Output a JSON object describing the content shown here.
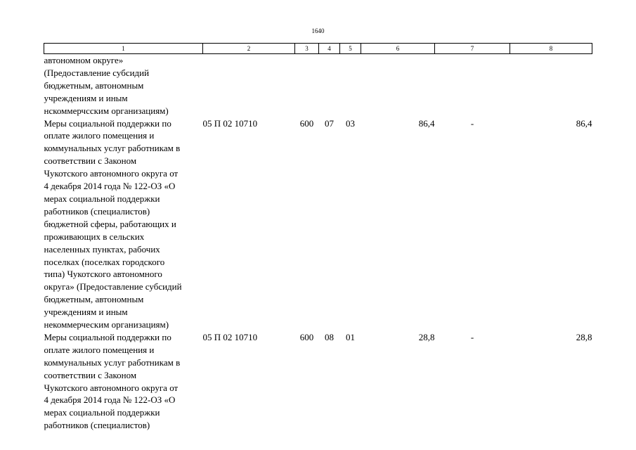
{
  "page_number": "1640",
  "header": [
    "1",
    "2",
    "3",
    "4",
    "5",
    "6",
    "7",
    "8"
  ],
  "rows": [
    {
      "name": "автономном округе»\n(Предоставление субсидий\nбюджетным, автономным\nучреждениям и иным\nнскоммерчсским организациям)",
      "code": "",
      "vr": "",
      "rz": "",
      "pr": "",
      "amount1": "",
      "amount2": "",
      "amount3": ""
    },
    {
      "name": "Меры социальной поддержки по\nоплате жилого помещения и\nкоммунальных услуг работникам в\nсоответствии с Законом\nЧукотского автономного округа от\n4 декабря 2014 года № 122-ОЗ «О\nмерах социальной поддержки\nработников (специалистов)\nбюджетной сферы, работающих и\nпроживающих в сельских\nнаселенных пунктах, рабочих\nпоселках (поселках городского\nтипа) Чукотского автономного\nокруга» (Предоставление субсидий\nбюджетным, автономным\nучреждениям и иным\nнекоммерческим организациям)",
      "code": "05 П 02 10710",
      "vr": "600",
      "rz": "07",
      "pr": "03",
      "amount1": "86,4",
      "amount2": "-",
      "amount3": "86,4"
    },
    {
      "name": "Меры социальной поддержки по\nоплате жилого помещения и\nкоммунальных услуг работникам в\nсоответствии с Законом\nЧукотского автономного округа от\n4 декабря 2014 года № 122-ОЗ «О\nмерах социальной поддержки\nработников (специалистов)",
      "code": "05 П 02 10710",
      "vr": "600",
      "rz": "08",
      "pr": "01",
      "amount1": "28,8",
      "amount2": "-",
      "amount3": "28,8"
    }
  ]
}
